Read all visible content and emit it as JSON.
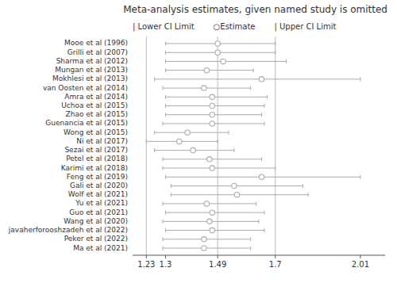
{
  "chart_data": {
    "type": "forest",
    "title": "Meta-analysis estimates, given named study is omitted",
    "annotations": [
      "| Lower CI Limit",
      "○Estimate",
      "| Upper CI Limit"
    ],
    "categories": [
      "Mooe et al  (1996)",
      "Grilli et al  (2007)",
      "Sharma et al  (2012)",
      "Mungan et al  (2013)",
      "Mokhlesi et al  (2013)",
      "van Oosten et al  (2014)",
      "Amra et al  (2014)",
      "Uchoa et  al  (2015)",
      "Zhao et al  (2015)",
      "Guenancia et al  (2015)",
      "Wong et al  (2015)",
      "Ni et al  (2017)",
      "Sezai et al  (2017)",
      "Petel et al (2018)",
      "Karimi et al  (2018)",
      "Feng et al  (2019)",
      "Gali et al  (2020)",
      "Wolf et al  (2021)",
      "Yu et al  (2021)",
      "Guo et al (2021)",
      "Wang et al (2020)",
      "javaherforooshzadeh et al (2022)",
      "Peker et al (2022)",
      "Ma et al (2021)"
    ],
    "values": [
      1.49,
      1.49,
      1.51,
      1.45,
      1.65,
      1.44,
      1.47,
      1.47,
      1.47,
      1.47,
      1.38,
      1.35,
      1.4,
      1.46,
      1.47,
      1.65,
      1.55,
      1.56,
      1.45,
      1.47,
      1.46,
      1.47,
      1.44,
      1.44
    ],
    "lower": [
      1.3,
      1.3,
      1.3,
      1.3,
      1.26,
      1.29,
      1.3,
      1.3,
      1.3,
      1.29,
      1.26,
      1.23,
      1.26,
      1.29,
      1.29,
      1.3,
      1.32,
      1.32,
      1.29,
      1.3,
      1.29,
      1.3,
      1.29,
      1.29
    ],
    "upper": [
      1.7,
      1.7,
      1.74,
      1.62,
      2.01,
      1.61,
      1.67,
      1.66,
      1.65,
      1.66,
      1.53,
      1.49,
      1.55,
      1.65,
      1.7,
      2.01,
      1.8,
      1.82,
      1.63,
      1.66,
      1.64,
      1.66,
      1.61,
      1.61
    ],
    "xlim": [
      1.18,
      2.1
    ],
    "xticks": [
      1.23,
      1.3,
      1.49,
      1.7,
      2.01
    ],
    "reference_lines": {
      "values": [
        1.23,
        1.49,
        1.7
      ],
      "color": "#bbbbbb"
    },
    "color": "#aaaaaa",
    "grid": false
  }
}
